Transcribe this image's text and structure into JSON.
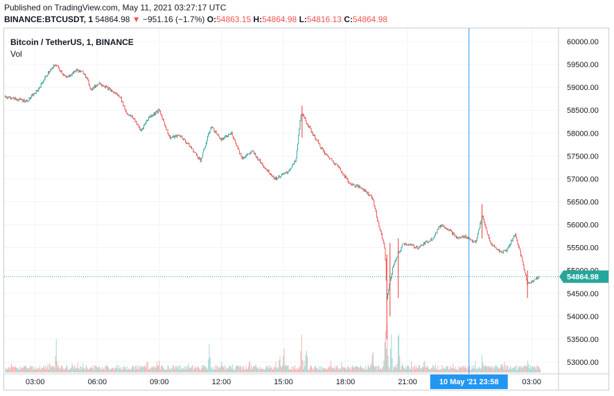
{
  "header": {
    "published": "Published on TradingView.com, May 11, 2021 03:27:17 UTC",
    "symbol": "BINANCE:BTCUSDT, 1",
    "last": "54864.98",
    "change": "−951.16 (−1.7%)",
    "o_label": "O:",
    "o_value": "54863.15",
    "h_label": "H:",
    "h_value": "54864.98",
    "l_label": "L:",
    "l_value": "54816.13",
    "c_label": "C:",
    "c_value": "54864.98"
  },
  "legend": {
    "title": "Bitcoin / TetherUS, 1, BINANCE",
    "vol": "Vol"
  },
  "colors": {
    "up": "#26a69a",
    "down": "#ef5350",
    "price_tag": "#26a69a",
    "crosshair": "#2196f3",
    "grid": "#f0f3fa"
  },
  "chart_data": {
    "type": "candlestick",
    "symbol": "BTCUSDT",
    "interval": "1 minute",
    "x_ticks": [
      "03:00",
      "06:00",
      "09:00",
      "12:00",
      "15:00",
      "18:00",
      "21:00",
      "03:00"
    ],
    "x_tick_hours": [
      3,
      6,
      9,
      12,
      15,
      18,
      21,
      27
    ],
    "x_range_hours": [
      1.5,
      28.3
    ],
    "y_ticks": [
      60000,
      59500,
      59000,
      58500,
      58000,
      57500,
      57000,
      56500,
      56000,
      55500,
      55000,
      54500,
      54000,
      53500,
      53000
    ],
    "y_tick_labels": [
      "60000.00",
      "59500.00",
      "59000.00",
      "58500.00",
      "58000.00",
      "57500.00",
      "57000.00",
      "56500.00",
      "56000.00",
      "55500.00",
      "55000.00",
      "54500.00",
      "54000.00",
      "53500.00",
      "53000.00"
    ],
    "ylim": [
      52850,
      60250
    ],
    "last_price": 54864.98,
    "last_price_label": "54864.98",
    "crosshair_time_label": "10 May '21   23:58",
    "crosshair_time_hours": 23.97,
    "price_path": [
      [
        1.55,
        58800
      ],
      [
        2.0,
        58750
      ],
      [
        2.6,
        58700
      ],
      [
        3.1,
        58920
      ],
      [
        3.6,
        59300
      ],
      [
        4.0,
        59500
      ],
      [
        4.5,
        59200
      ],
      [
        5.0,
        59380
      ],
      [
        5.4,
        59300
      ],
      [
        5.7,
        58950
      ],
      [
        6.1,
        59100
      ],
      [
        6.6,
        58950
      ],
      [
        7.1,
        58800
      ],
      [
        7.4,
        58450
      ],
      [
        7.8,
        58300
      ],
      [
        8.1,
        58050
      ],
      [
        8.5,
        58350
      ],
      [
        9.0,
        58500
      ],
      [
        9.5,
        57900
      ],
      [
        10.0,
        57950
      ],
      [
        10.5,
        57700
      ],
      [
        11.0,
        57400
      ],
      [
        11.5,
        58150
      ],
      [
        12.0,
        57850
      ],
      [
        12.5,
        58000
      ],
      [
        13.0,
        57450
      ],
      [
        13.5,
        57600
      ],
      [
        14.0,
        57300
      ],
      [
        14.6,
        57000
      ],
      [
        15.2,
        57150
      ],
      [
        15.6,
        57400
      ],
      [
        15.85,
        58450
      ],
      [
        16.4,
        58000
      ],
      [
        17.0,
        57550
      ],
      [
        17.6,
        57300
      ],
      [
        18.2,
        56900
      ],
      [
        18.8,
        56800
      ],
      [
        19.3,
        56600
      ],
      [
        19.6,
        56000
      ],
      [
        19.9,
        55500
      ],
      [
        20.0,
        54400
      ],
      [
        20.3,
        55100
      ],
      [
        20.6,
        55400
      ],
      [
        20.8,
        55600
      ],
      [
        21.5,
        55500
      ],
      [
        22.2,
        55700
      ],
      [
        22.6,
        56000
      ],
      [
        23.0,
        55900
      ],
      [
        23.4,
        55700
      ],
      [
        23.8,
        55750
      ],
      [
        24.3,
        55600
      ],
      [
        24.6,
        56200
      ],
      [
        25.0,
        55600
      ],
      [
        25.5,
        55400
      ],
      [
        25.8,
        55450
      ],
      [
        26.2,
        55800
      ],
      [
        26.5,
        55300
      ],
      [
        26.8,
        54700
      ],
      [
        27.1,
        54800
      ],
      [
        27.4,
        54865
      ]
    ],
    "spikes": [
      {
        "x": 20.0,
        "low": 53500,
        "high": 55350
      },
      {
        "x": 20.15,
        "low": 54000,
        "high": 55600
      },
      {
        "x": 20.55,
        "low": 54400,
        "high": 55700
      },
      {
        "x": 15.9,
        "low": 57900,
        "high": 58600
      },
      {
        "x": 24.6,
        "low": 55700,
        "high": 56450
      },
      {
        "x": 26.8,
        "low": 54400,
        "high": 55000
      }
    ],
    "volume": {
      "note": "volume bars at bottom of pane, relative scale",
      "peaks": [
        {
          "x": 4.0,
          "rel": 0.55
        },
        {
          "x": 8.4,
          "rel": 0.3
        },
        {
          "x": 11.4,
          "rel": 0.6
        },
        {
          "x": 14.8,
          "rel": 0.35
        },
        {
          "x": 15.0,
          "rel": 0.55
        },
        {
          "x": 15.85,
          "rel": 0.85
        },
        {
          "x": 16.1,
          "rel": 0.6
        },
        {
          "x": 19.3,
          "rel": 0.45
        },
        {
          "x": 19.9,
          "rel": 1.0
        },
        {
          "x": 20.0,
          "rel": 0.9
        },
        {
          "x": 20.2,
          "rel": 0.8
        },
        {
          "x": 20.55,
          "rel": 0.9
        },
        {
          "x": 24.6,
          "rel": 0.35
        },
        {
          "x": 26.8,
          "rel": 0.25
        }
      ]
    }
  }
}
